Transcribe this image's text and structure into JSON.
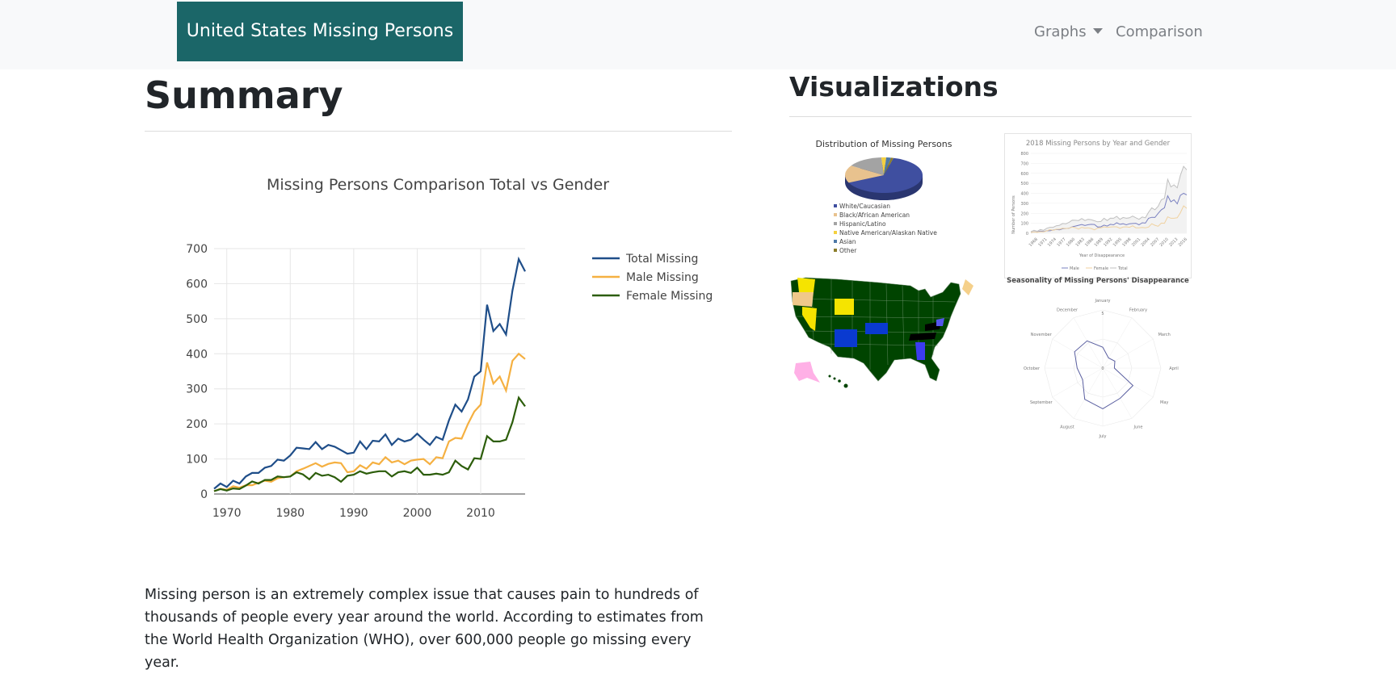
{
  "navbar": {
    "brand": "United States Missing Persons",
    "graphs_label": "Graphs",
    "comparison_label": "Comparison"
  },
  "summary": {
    "heading": "Summary",
    "text": "Missing person is an extremely complex issue that causes pain to hundreds of thousands of people every year around the world. According to estimates from the World Health Organization (WHO), over 600,000 people go missing every year."
  },
  "visualizations": {
    "heading": "Visualizations",
    "pie_title": "Distribution of Missing Persons",
    "pie_legend": [
      {
        "label": "White/Caucasian",
        "color": "#3f4fa0"
      },
      {
        "label": "Black/African American",
        "color": "#e8c28e"
      },
      {
        "label": "Hispanic/Latino",
        "color": "#a3a3a3"
      },
      {
        "label": "Native American/Alaskan Native",
        "color": "#f4d03f"
      },
      {
        "label": "Asian",
        "color": "#4e79a7"
      },
      {
        "label": "Other",
        "color": "#8b7d2a"
      }
    ],
    "line_title": "2018 Missing Persons by Year and Gender",
    "line_ylabel": "Number of Persons",
    "line_xlabel": "Year of Disappearance",
    "line_legend": [
      "Male",
      "Female",
      "Total"
    ],
    "line_yticks": [
      "0",
      "100",
      "200",
      "300",
      "400",
      "500",
      "600",
      "700",
      "800"
    ],
    "line_xticks": [
      "1968",
      "1971",
      "1974",
      "1977",
      "1980",
      "1983",
      "1986",
      "1989",
      "1992",
      "1995",
      "1998",
      "2001",
      "2004",
      "2007",
      "2010",
      "2013",
      "2016"
    ],
    "radar_title": "Seasonality of Missing Persons' Disappearance",
    "radar_months": [
      "January",
      "February",
      "March",
      "April",
      "May",
      "June",
      "July",
      "August",
      "September",
      "October",
      "November",
      "December"
    ],
    "radar_ticks": [
      "0",
      "5"
    ]
  },
  "chart_data": {
    "type": "line",
    "title": "Missing Persons Comparison Total vs Gender",
    "xlabel": "",
    "ylabel": "",
    "xlim": [
      1968,
      2017
    ],
    "ylim": [
      0,
      700
    ],
    "xticks": [
      1970,
      1980,
      1990,
      2000,
      2010
    ],
    "yticks": [
      0,
      100,
      200,
      300,
      400,
      500,
      600,
      700
    ],
    "grid": true,
    "legend_position": "top-right",
    "x": [
      1968,
      1969,
      1970,
      1971,
      1972,
      1973,
      1974,
      1975,
      1976,
      1977,
      1978,
      1979,
      1980,
      1981,
      1982,
      1983,
      1984,
      1985,
      1986,
      1987,
      1988,
      1989,
      1990,
      1991,
      1992,
      1993,
      1994,
      1995,
      1996,
      1997,
      1998,
      1999,
      2000,
      2001,
      2002,
      2003,
      2004,
      2005,
      2006,
      2007,
      2008,
      2009,
      2010,
      2011,
      2012,
      2013,
      2014,
      2015,
      2016,
      2017
    ],
    "series": [
      {
        "name": "Total Missing",
        "color": "#1f4e89",
        "values": [
          15,
          30,
          20,
          38,
          30,
          50,
          60,
          60,
          75,
          80,
          98,
          95,
          110,
          132,
          130,
          128,
          148,
          128,
          140,
          135,
          125,
          115,
          118,
          150,
          128,
          152,
          150,
          170,
          140,
          158,
          150,
          155,
          172,
          155,
          140,
          163,
          155,
          210,
          255,
          235,
          270,
          335,
          350,
          540,
          465,
          485,
          455,
          580,
          670,
          635
        ]
      },
      {
        "name": "Male Missing",
        "color": "#f5b041",
        "values": [
          8,
          15,
          12,
          22,
          18,
          25,
          25,
          32,
          38,
          35,
          45,
          48,
          50,
          65,
          72,
          80,
          88,
          78,
          86,
          90,
          88,
          62,
          65,
          82,
          72,
          90,
          85,
          105,
          90,
          95,
          85,
          95,
          98,
          100,
          85,
          105,
          102,
          150,
          160,
          158,
          200,
          235,
          255,
          375,
          315,
          335,
          295,
          380,
          400,
          385
        ]
      },
      {
        "name": "Female Missing",
        "color": "#2c5d0a",
        "values": [
          8,
          14,
          10,
          16,
          14,
          24,
          36,
          30,
          40,
          40,
          50,
          48,
          50,
          62,
          56,
          42,
          60,
          52,
          55,
          48,
          35,
          52,
          55,
          65,
          58,
          62,
          65,
          65,
          50,
          62,
          65,
          60,
          75,
          55,
          55,
          58,
          55,
          62,
          95,
          80,
          70,
          102,
          100,
          165,
          150,
          150,
          155,
          205,
          275,
          250
        ]
      }
    ]
  }
}
